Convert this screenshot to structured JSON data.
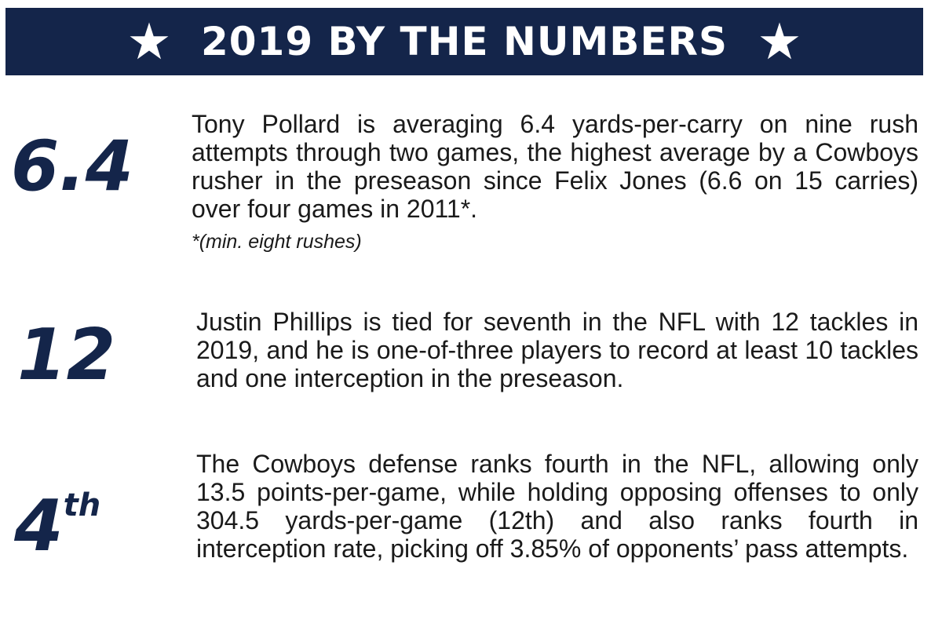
{
  "header": {
    "title": "2019 BY THE NUMBERS",
    "left_icon": "star-icon",
    "right_icon": "star-icon",
    "background_color": "#14254a",
    "text_color": "#ffffff"
  },
  "stats": [
    {
      "number": "6.4",
      "text": "Tony Pollard is averaging 6.4 yards-per-carry on nine rush attempts through two games, the highest average by a Cowboys rusher in the preseason since Felix Jones (6.6 on 15 carries) over four games in 2011*.",
      "footnote": "*(min. eight rushes)"
    },
    {
      "number": "12",
      "text": "Justin Phillips is tied for seventh in the NFL with 12 tackles in 2019, and he is one-of-three players to record at least 10 tackles and one interception in the preseason."
    },
    {
      "number": "4",
      "number_suffix": "th",
      "text": "The Cowboys defense ranks fourth in the NFL, allowing only 13.5 points-per-game, while holding opposing offenses to only 304.5 yards-per-game (12th) and also ranks fourth in interception rate, picking off 3.85% of opponents’ pass attempts."
    }
  ],
  "accent_color": "#14254a"
}
